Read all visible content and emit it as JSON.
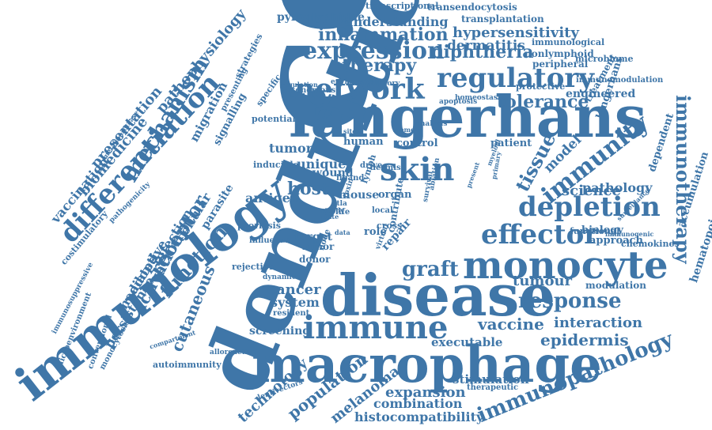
{
  "color": "#3f76a8",
  "words": [
    "cell",
    "dendritic",
    "langerhans",
    "disease",
    "macrophage",
    "immunology",
    "monocyte",
    "immune",
    "network",
    "skin",
    "regulatory",
    "depletion",
    "expression",
    "inflammation",
    "differentiation",
    "effector",
    "immunotherapy",
    "immunity",
    "mechanism",
    "tissue",
    "response",
    "tolerance",
    "immunopathology",
    "graft",
    "therapy",
    "receptor",
    "function",
    "diphtheria",
    "hypersensitivity",
    "dermatitis",
    "host",
    "vaccine",
    "interaction",
    "epidermis",
    "activation",
    "cancer",
    "tumour",
    "population",
    "expansion",
    "combination",
    "histocompatibility",
    "melanoma",
    "technology",
    "cutaneous",
    "understanding",
    "pyroglyphidae",
    "transendocytosis",
    "transcriptional",
    "transplantation",
    "immunological",
    "nonlymphoid",
    "microbiome",
    "peripheral",
    "engineered",
    "treatment",
    "immunomodulation",
    "langerhans",
    "dependent",
    "accumulation",
    "hematopoietic",
    "pathology",
    "science",
    "model",
    "patient",
    "biology",
    "approach",
    "chemokines",
    "surveillance",
    "immunogenic",
    "modulation",
    "stimulation",
    "therapeutic",
    "executable",
    "screening",
    "system",
    "resident",
    "tumor",
    "mouse",
    "human",
    "control",
    "antigen",
    "unique",
    "wound",
    "role",
    "organ",
    "repair",
    "target",
    "donor",
    "minor",
    "rejection",
    "influenza",
    "psoriasis",
    "parasite",
    "cellular",
    "infection",
    "adoptive",
    "mediated",
    "persistence",
    "monocytosis",
    "conventional",
    "microenvironment",
    "immunosuppressive",
    "costimulatory",
    "vaccination",
    "biomedicine",
    "presentation",
    "pathophysiology",
    "migration",
    "signalling",
    "strategies",
    "presenting",
    "autonomous",
    "potential",
    "autoimmunity",
    "alloreactive",
    "dynamic",
    "lentivectors",
    "compartment",
    "contribute",
    "functional",
    "inducible",
    "protective",
    "homeostasis",
    "apoptosis",
    "inflammatory",
    "metalloprotease",
    "pathogenicity",
    "environment",
    "regulation",
    "specific",
    "memory",
    "analysis",
    "ablation",
    "steady",
    "state",
    "dermis",
    "local",
    "cross",
    "life",
    "ligand",
    "node",
    "data",
    "ctla",
    "toxin",
    "lymph",
    "drive",
    "sites",
    "virtual",
    "survival",
    "present",
    "myeloid",
    "primary",
    "capacity"
  ]
}
